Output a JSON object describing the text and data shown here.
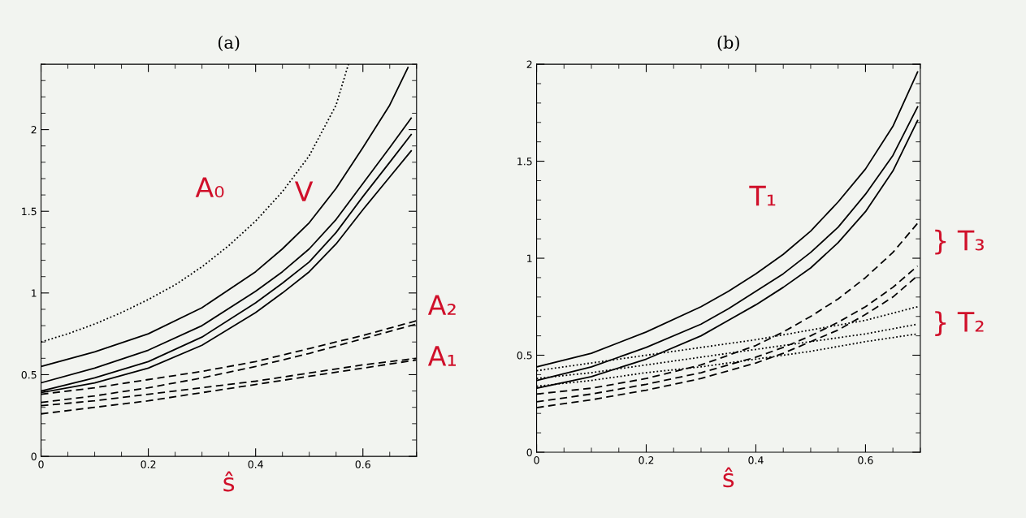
{
  "chart_data": [
    {
      "type": "line",
      "title": "(a)",
      "xlabel": "ŝ",
      "xlim": [
        0,
        0.7
      ],
      "ylim": [
        0,
        2.4
      ],
      "xticks": [
        0,
        0.2,
        0.4,
        0.6
      ],
      "yticks": [
        0,
        0.5,
        1,
        1.5,
        2
      ],
      "grid": false,
      "legend": false,
      "series": [
        {
          "color": "#000000",
          "line_style": "dotted",
          "x": [
            0,
            0.05,
            0.1,
            0.15,
            0.2,
            0.25,
            0.3,
            0.35,
            0.4,
            0.45,
            0.5,
            0.55,
            0.573
          ],
          "values": [
            0.7,
            0.75,
            0.81,
            0.88,
            0.96,
            1.05,
            1.16,
            1.29,
            1.44,
            1.62,
            1.84,
            2.15,
            2.4
          ]
        },
        {
          "color": "#000000",
          "line_style": "solid",
          "x": [
            0,
            0.1,
            0.2,
            0.3,
            0.4,
            0.45,
            0.5,
            0.55,
            0.6,
            0.65,
            0.684
          ],
          "values": [
            0.55,
            0.64,
            0.75,
            0.91,
            1.13,
            1.27,
            1.43,
            1.64,
            1.89,
            2.15,
            2.38
          ]
        },
        {
          "color": "#000000",
          "line_style": "solid",
          "x": [
            0,
            0.1,
            0.2,
            0.3,
            0.4,
            0.45,
            0.5,
            0.55,
            0.6,
            0.65,
            0.69
          ],
          "values": [
            0.45,
            0.54,
            0.65,
            0.8,
            1.01,
            1.13,
            1.27,
            1.45,
            1.67,
            1.89,
            2.07
          ]
        },
        {
          "color": "#000000",
          "line_style": "solid",
          "x": [
            0,
            0.1,
            0.2,
            0.3,
            0.4,
            0.45,
            0.5,
            0.55,
            0.6,
            0.65,
            0.69
          ],
          "values": [
            0.4,
            0.48,
            0.58,
            0.73,
            0.94,
            1.06,
            1.19,
            1.37,
            1.59,
            1.8,
            1.97
          ]
        },
        {
          "color": "#000000",
          "line_style": "solid",
          "x": [
            0,
            0.1,
            0.2,
            0.3,
            0.4,
            0.45,
            0.5,
            0.55,
            0.6,
            0.65,
            0.69
          ],
          "values": [
            0.39,
            0.45,
            0.54,
            0.68,
            0.88,
            1.0,
            1.13,
            1.3,
            1.51,
            1.71,
            1.87
          ]
        },
        {
          "color": "#000000",
          "line_style": "dashed",
          "x": [
            0,
            0.1,
            0.2,
            0.3,
            0.4,
            0.5,
            0.6,
            0.7
          ],
          "values": [
            0.38,
            0.42,
            0.47,
            0.52,
            0.58,
            0.66,
            0.74,
            0.83
          ]
        },
        {
          "color": "#000000",
          "line_style": "dashed",
          "x": [
            0,
            0.1,
            0.2,
            0.3,
            0.4,
            0.5,
            0.6,
            0.7
          ],
          "values": [
            0.33,
            0.37,
            0.42,
            0.48,
            0.55,
            0.63,
            0.72,
            0.81
          ]
        },
        {
          "color": "#000000",
          "line_style": "dashed",
          "x": [
            0,
            0.1,
            0.2,
            0.3,
            0.4,
            0.5,
            0.6,
            0.7
          ],
          "values": [
            0.31,
            0.34,
            0.38,
            0.42,
            0.46,
            0.51,
            0.56,
            0.6
          ]
        },
        {
          "color": "#000000",
          "line_style": "dashed",
          "x": [
            0,
            0.1,
            0.2,
            0.3,
            0.4,
            0.5,
            0.6,
            0.7
          ],
          "values": [
            0.26,
            0.3,
            0.34,
            0.39,
            0.44,
            0.49,
            0.54,
            0.59
          ]
        }
      ],
      "annotations": [
        "A₀",
        "V",
        "A₂",
        "A₁"
      ]
    },
    {
      "type": "line",
      "title": "(b)",
      "xlabel": "ŝ",
      "xlim": [
        0,
        0.7
      ],
      "ylim": [
        0,
        2
      ],
      "xticks": [
        0,
        0.2,
        0.4,
        0.6
      ],
      "yticks": [
        0,
        0.5,
        1,
        1.5,
        2
      ],
      "grid": false,
      "legend": false,
      "series": [
        {
          "color": "#000000",
          "line_style": "solid",
          "x": [
            0,
            0.1,
            0.2,
            0.3,
            0.35,
            0.4,
            0.45,
            0.5,
            0.55,
            0.6,
            0.65,
            0.695
          ],
          "values": [
            0.44,
            0.51,
            0.62,
            0.75,
            0.83,
            0.92,
            1.02,
            1.14,
            1.29,
            1.46,
            1.68,
            1.96
          ]
        },
        {
          "color": "#000000",
          "line_style": "solid",
          "x": [
            0,
            0.1,
            0.2,
            0.3,
            0.35,
            0.4,
            0.45,
            0.5,
            0.55,
            0.6,
            0.65,
            0.695
          ],
          "values": [
            0.37,
            0.44,
            0.54,
            0.66,
            0.74,
            0.83,
            0.92,
            1.03,
            1.16,
            1.33,
            1.53,
            1.78
          ]
        },
        {
          "color": "#000000",
          "line_style": "solid",
          "x": [
            0,
            0.1,
            0.2,
            0.3,
            0.35,
            0.4,
            0.45,
            0.5,
            0.55,
            0.6,
            0.65,
            0.695
          ],
          "values": [
            0.33,
            0.39,
            0.48,
            0.6,
            0.68,
            0.76,
            0.85,
            0.95,
            1.08,
            1.24,
            1.45,
            1.71
          ]
        },
        {
          "color": "#000000",
          "line_style": "dashed",
          "x": [
            0,
            0.1,
            0.2,
            0.3,
            0.4,
            0.45,
            0.5,
            0.55,
            0.6,
            0.65,
            0.695
          ],
          "values": [
            0.3,
            0.33,
            0.38,
            0.45,
            0.55,
            0.62,
            0.7,
            0.79,
            0.9,
            1.03,
            1.18
          ]
        },
        {
          "color": "#000000",
          "line_style": "dashed",
          "x": [
            0,
            0.1,
            0.2,
            0.3,
            0.4,
            0.45,
            0.5,
            0.55,
            0.6,
            0.65,
            0.695
          ],
          "values": [
            0.26,
            0.3,
            0.35,
            0.41,
            0.49,
            0.54,
            0.6,
            0.67,
            0.75,
            0.85,
            0.96
          ]
        },
        {
          "color": "#000000",
          "line_style": "dashed",
          "x": [
            0,
            0.1,
            0.2,
            0.3,
            0.4,
            0.45,
            0.5,
            0.55,
            0.6,
            0.65,
            0.695
          ],
          "values": [
            0.23,
            0.27,
            0.32,
            0.38,
            0.46,
            0.51,
            0.57,
            0.63,
            0.71,
            0.8,
            0.91
          ]
        },
        {
          "color": "#000000",
          "line_style": "dotted",
          "x": [
            0,
            0.1,
            0.2,
            0.3,
            0.4,
            0.5,
            0.6,
            0.695
          ],
          "values": [
            0.42,
            0.46,
            0.5,
            0.54,
            0.58,
            0.63,
            0.68,
            0.75
          ]
        },
        {
          "color": "#000000",
          "line_style": "dotted",
          "x": [
            0,
            0.1,
            0.2,
            0.3,
            0.4,
            0.5,
            0.6,
            0.695
          ],
          "values": [
            0.38,
            0.41,
            0.45,
            0.49,
            0.53,
            0.57,
            0.61,
            0.66
          ]
        },
        {
          "color": "#000000",
          "line_style": "dotted",
          "x": [
            0,
            0.1,
            0.2,
            0.3,
            0.4,
            0.5,
            0.6,
            0.695
          ],
          "values": [
            0.34,
            0.37,
            0.41,
            0.44,
            0.48,
            0.52,
            0.57,
            0.61
          ]
        }
      ],
      "annotations": [
        "T₁",
        "} T₃",
        "} T₂"
      ]
    }
  ]
}
